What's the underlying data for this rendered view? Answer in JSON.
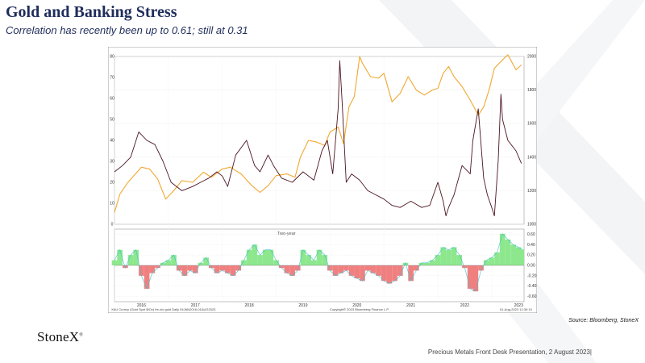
{
  "header": {
    "title": "Gold and Banking Stress",
    "subtitle": "Correlation has recently been up to 0.61; still at 0.31"
  },
  "source_text": "Source:  Bloomberg,  StoneX",
  "logo": {
    "text": "StoneX",
    "mark": "®"
  },
  "footer": {
    "text": "Precious Metals Front Desk Presentation, 2 August 2023|"
  },
  "chart_data": {
    "type": "line",
    "window_label": "Two-year",
    "x_tick_labels": [
      "2016",
      "2017",
      "2018",
      "2019",
      "2020",
      "2021",
      "2022",
      "2023"
    ],
    "status_bar": {
      "left": "XAU Curncy (Gold Spot   $/Oz) fre-xio gold  Daily 04JAN2016-01AUG2023",
      "center": "Copyright© 2023 Bloomberg Finance L.P.",
      "right": "01-Aug-2023 12:30:10"
    },
    "colors": {
      "gold_line": "#f0a830",
      "stress_line": "#4a1420",
      "positive_fill": "#8de88d",
      "negative_fill": "#f08080",
      "corr_line": "#40c0d0"
    },
    "panels": [
      {
        "name": "upper",
        "left_axis": {
          "ticks": [
            "0",
            "10",
            "20",
            "30",
            "40",
            "50",
            "60",
            "70",
            "80"
          ],
          "ylim": [
            0,
            80
          ]
        },
        "right_axis": {
          "ticks": [
            "1000",
            "1200",
            "1400",
            "1600",
            "1800",
            "2000"
          ],
          "ylim": [
            1000,
            2000
          ]
        },
        "series": [
          {
            "axis": "right",
            "x": [
              2016.0,
              2016.1,
              2016.25,
              2016.5,
              2016.65,
              2016.8,
              2016.95,
              2017.1,
              2017.25,
              2017.45,
              2017.65,
              2017.8,
              2018.0,
              2018.15,
              2018.35,
              2018.55,
              2018.7,
              2018.85,
              2019.0,
              2019.2,
              2019.35,
              2019.45,
              2019.6,
              2019.75,
              2019.9,
              2020.0,
              2020.15,
              2020.25,
              2020.35,
              2020.45,
              2020.55,
              2020.6,
              2020.75,
              2020.9,
              2021.0,
              2021.15,
              2021.3,
              2021.45,
              2021.6,
              2021.75,
              2021.9,
              2022.0,
              2022.1,
              2022.2,
              2022.3,
              2022.45,
              2022.6,
              2022.75,
              2022.85,
              2022.95,
              2023.05,
              2023.2,
              2023.3,
              2023.45,
              2023.55
            ],
            "y": [
              1070,
              1180,
              1250,
              1340,
              1330,
              1270,
              1150,
              1200,
              1260,
              1250,
              1310,
              1280,
              1330,
              1340,
              1300,
              1230,
              1190,
              1230,
              1290,
              1300,
              1280,
              1400,
              1500,
              1490,
              1470,
              1550,
              1580,
              1480,
              1700,
              1760,
              2000,
              1960,
              1880,
              1870,
              1900,
              1730,
              1780,
              1880,
              1800,
              1770,
              1800,
              1810,
              1900,
              1940,
              1880,
              1820,
              1740,
              1650,
              1700,
              1800,
              1930,
              1980,
              2010,
              1920,
              1950
            ]
          },
          {
            "axis": "left",
            "x": [
              2016.0,
              2016.15,
              2016.3,
              2016.45,
              2016.6,
              2016.75,
              2016.9,
              2017.05,
              2017.25,
              2017.45,
              2017.6,
              2017.75,
              2017.9,
              2018.0,
              2018.1,
              2018.25,
              2018.45,
              2018.6,
              2018.7,
              2018.85,
              2018.95,
              2019.1,
              2019.3,
              2019.5,
              2019.7,
              2019.85,
              2019.95,
              2020.05,
              2020.15,
              2020.18,
              2020.22,
              2020.3,
              2020.4,
              2020.55,
              2020.7,
              2020.85,
              2021.0,
              2021.15,
              2021.3,
              2021.5,
              2021.7,
              2021.85,
              2022.0,
              2022.1,
              2022.15,
              2022.2,
              2022.3,
              2022.45,
              2022.6,
              2022.65,
              2022.75,
              2022.85,
              2022.92,
              2023.0,
              2023.05,
              2023.12,
              2023.17,
              2023.2,
              2023.3,
              2023.45,
              2023.55
            ],
            "y": [
              25,
              28,
              32,
              44,
              40,
              38,
              30,
              20,
              16,
              18,
              20,
              22,
              25,
              23,
              18,
              33,
              40,
              28,
              25,
              33,
              28,
              22,
              20,
              25,
              21,
              35,
              40,
              24,
              55,
              78,
              60,
              20,
              24,
              21,
              16,
              14,
              12,
              9,
              8,
              11,
              8,
              9,
              20,
              11,
              4,
              8,
              14,
              28,
              24,
              40,
              55,
              22,
              14,
              8,
              4,
              30,
              62,
              50,
              40,
              35,
              29
            ]
          }
        ]
      },
      {
        "name": "lower",
        "ticks": [
          "-0.60",
          "-0.40",
          "-0.20",
          "0.00",
          "0.20",
          "0.40",
          "0.60"
        ],
        "ylim": [
          -0.7,
          0.7
        ],
        "series": [
          {
            "x": [
              2016.0,
              2016.1,
              2016.2,
              2016.3,
              2016.4,
              2016.5,
              2016.6,
              2016.7,
              2016.8,
              2016.9,
              2017.0,
              2017.1,
              2017.2,
              2017.3,
              2017.4,
              2017.5,
              2017.6,
              2017.7,
              2017.8,
              2017.9,
              2018.0,
              2018.1,
              2018.2,
              2018.3,
              2018.4,
              2018.5,
              2018.6,
              2018.7,
              2018.8,
              2018.9,
              2019.0,
              2019.1,
              2019.2,
              2019.3,
              2019.4,
              2019.5,
              2019.6,
              2019.7,
              2019.8,
              2019.9,
              2020.0,
              2020.1,
              2020.2,
              2020.3,
              2020.4,
              2020.5,
              2020.6,
              2020.7,
              2020.8,
              2020.9,
              2021.0,
              2021.1,
              2021.2,
              2021.3,
              2021.4,
              2021.5,
              2021.6,
              2021.7,
              2021.8,
              2021.9,
              2022.0,
              2022.1,
              2022.2,
              2022.3,
              2022.4,
              2022.5,
              2022.6,
              2022.7,
              2022.8,
              2022.9,
              2023.0,
              2023.1,
              2023.2,
              2023.3,
              2023.4,
              2023.5,
              2023.55
            ],
            "y": [
              0.1,
              0.3,
              -0.05,
              0.2,
              0.3,
              -0.2,
              -0.45,
              -0.15,
              -0.05,
              0.05,
              0.1,
              0.2,
              -0.1,
              -0.2,
              -0.1,
              -0.15,
              0.05,
              0.15,
              -0.05,
              -0.15,
              -0.1,
              -0.15,
              -0.2,
              -0.1,
              0.1,
              0.3,
              0.4,
              0.2,
              0.3,
              0.3,
              0.1,
              -0.05,
              -0.15,
              -0.2,
              -0.1,
              0.3,
              0.2,
              0.1,
              0.3,
              0.2,
              -0.1,
              -0.2,
              -0.15,
              -0.1,
              -0.2,
              -0.25,
              -0.3,
              -0.1,
              -0.15,
              -0.2,
              -0.3,
              -0.35,
              -0.3,
              -0.2,
              0.05,
              -0.3,
              -0.1,
              0.05,
              0.05,
              0.1,
              0.2,
              0.35,
              0.3,
              0.35,
              0.2,
              -0.05,
              -0.45,
              -0.5,
              -0.1,
              0.1,
              0.15,
              0.25,
              0.61,
              0.5,
              0.4,
              0.35,
              0.31
            ]
          }
        ]
      }
    ]
  }
}
